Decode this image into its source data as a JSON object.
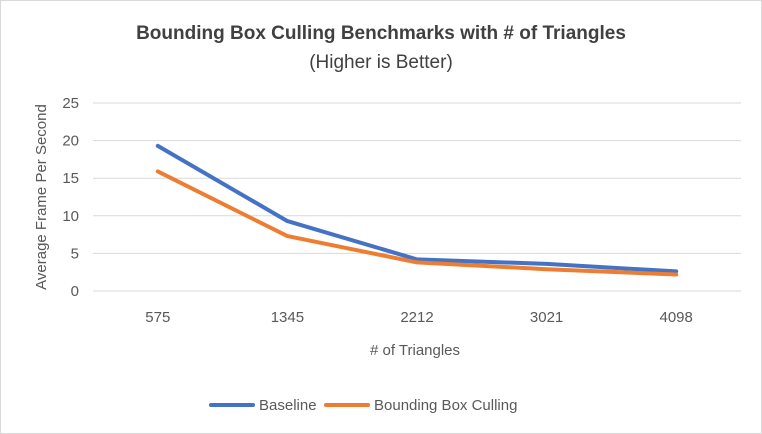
{
  "chart_data": {
    "type": "line",
    "title": "Bounding Box Culling Benchmarks with # of Triangles",
    "subtitle": "(Higher is Better)",
    "xlabel": "# of Triangles",
    "ylabel": "Average Frame Per Second",
    "categories": [
      "575",
      "1345",
      "2212",
      "3021",
      "4098"
    ],
    "ylim": [
      0,
      25
    ],
    "yticks": [
      "0",
      "5",
      "10",
      "15",
      "20",
      "25"
    ],
    "grid": true,
    "legend_position": "bottom",
    "series": [
      {
        "name": "Baseline",
        "color": "#4472c4",
        "values": [
          19.3,
          9.3,
          4.2,
          3.6,
          2.6
        ]
      },
      {
        "name": "Bounding Box Culling",
        "color": "#ed7d31",
        "values": [
          15.9,
          7.3,
          3.8,
          2.9,
          2.2
        ]
      }
    ]
  }
}
